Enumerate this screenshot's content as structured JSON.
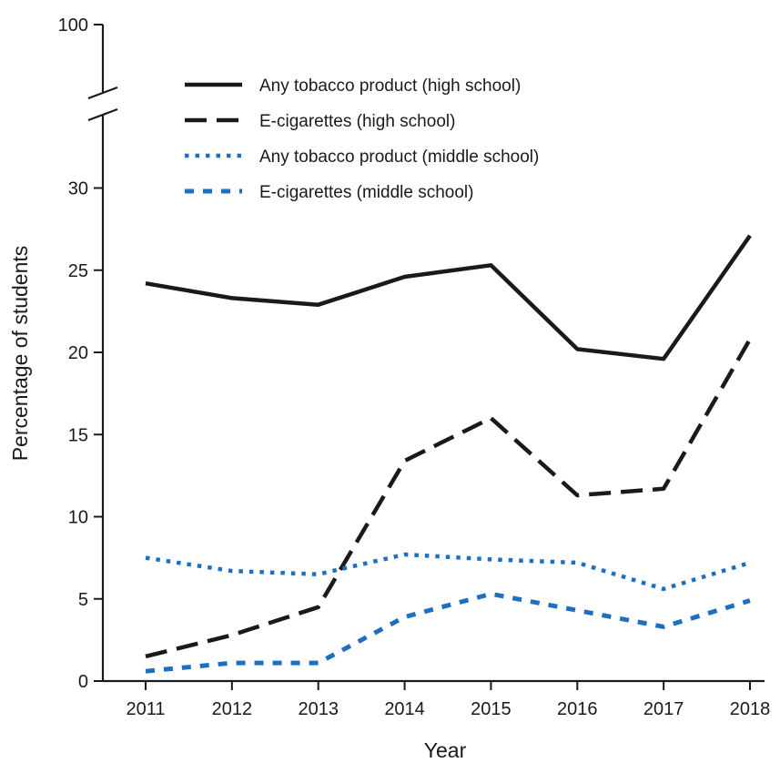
{
  "chart_data": {
    "type": "line",
    "title": "",
    "xlabel": "Year",
    "ylabel": "Percentage of students",
    "x": [
      2011,
      2012,
      2013,
      2014,
      2015,
      2016,
      2017,
      2018
    ],
    "x_tick_labels": [
      "2011",
      "2012",
      "2013",
      "2014",
      "2015",
      "2016",
      "2017",
      "2018"
    ],
    "y_ticks": [
      0,
      5,
      10,
      15,
      20,
      25,
      30
    ],
    "y_tick_labels": [
      "0",
      "5",
      "10",
      "15",
      "20",
      "25",
      "30"
    ],
    "y_top_tick": 100,
    "y_top_tick_label": "100",
    "ylim": [
      0,
      32
    ],
    "axis_break": true,
    "grid": false,
    "legend_position": "top-center",
    "series": [
      {
        "name": "Any tobacco product (high school)",
        "values": [
          24.2,
          23.3,
          22.9,
          24.6,
          25.3,
          20.2,
          19.6,
          27.1
        ],
        "color": "#1a1a1a",
        "line_style": "solid"
      },
      {
        "name": "E-cigarettes (high school)",
        "values": [
          1.5,
          2.8,
          4.5,
          13.4,
          16.0,
          11.3,
          11.7,
          20.8
        ],
        "color": "#1a1a1a",
        "line_style": "dashed"
      },
      {
        "name": "Any tobacco product (middle school)",
        "values": [
          7.5,
          6.7,
          6.5,
          7.7,
          7.4,
          7.2,
          5.6,
          7.2
        ],
        "color": "#1f6fc1",
        "line_style": "dotted"
      },
      {
        "name": "E-cigarettes (middle school)",
        "values": [
          0.6,
          1.1,
          1.1,
          3.9,
          5.3,
          4.3,
          3.3,
          4.9
        ],
        "color": "#1f6fc1",
        "line_style": "dashed-short"
      }
    ]
  }
}
